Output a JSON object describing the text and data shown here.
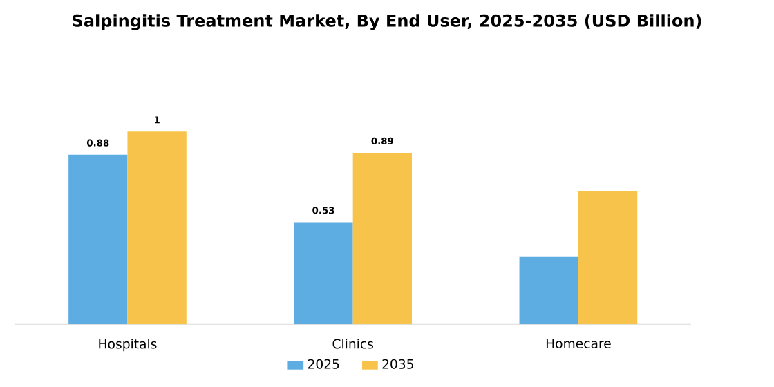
{
  "chart_data": {
    "type": "bar",
    "title": "Salpingitis Treatment Market, By End User, 2025-2035 (USD Billion)",
    "categories": [
      "Hospitals",
      "Clinics",
      "Homecare"
    ],
    "series": [
      {
        "name": "2025",
        "color": "#5dade2",
        "values": [
          0.88,
          0.53,
          0.35
        ],
        "value_labels": [
          "0.88",
          "0.53",
          null
        ]
      },
      {
        "name": "2035",
        "color": "#f7c34a",
        "values": [
          1,
          0.89,
          0.69
        ],
        "value_labels": [
          "1",
          "0.89",
          null
        ]
      }
    ],
    "legend": "bottom"
  }
}
